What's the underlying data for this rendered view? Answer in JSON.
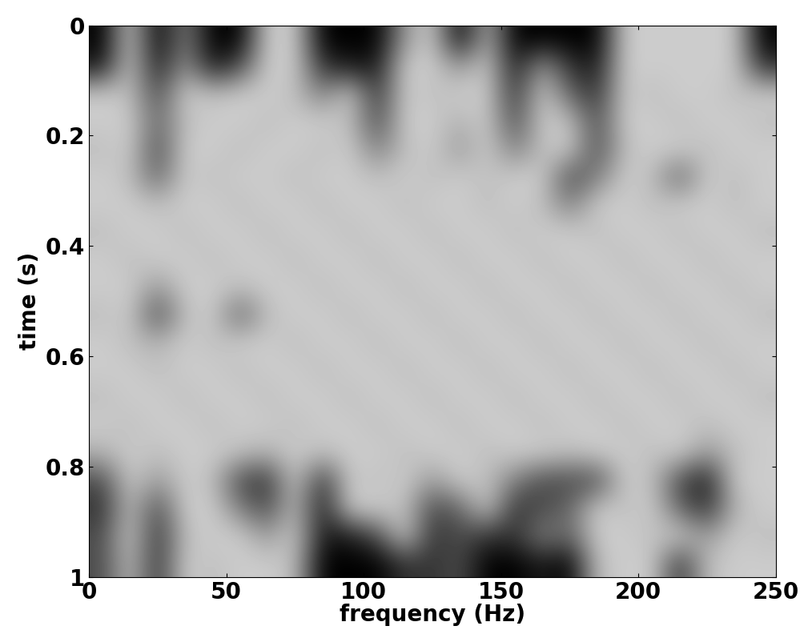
{
  "chart_data": {
    "type": "heatmap",
    "x_label": "frequency (Hz)",
    "y_label": "time (s)",
    "xlim": [
      0,
      250
    ],
    "xticks": [
      0,
      50,
      100,
      150,
      200,
      250
    ],
    "ylim": [
      0,
      1
    ],
    "yticks": [
      0,
      0.2,
      0.4,
      0.6,
      0.8,
      1
    ],
    "color": "gray",
    "value_range": [
      0,
      1
    ],
    "cells": [
      [
        0.0,
        0.8,
        0.0,
        0.5,
        0.0,
        0.0,
        0.8,
        0.8,
        0.0,
        0.0,
        0.0,
        0.6,
        0.8,
        0.0,
        0.7,
        0.0,
        0.0,
        0.0,
        0.0,
        0.8,
        0.8,
        0.8,
        0.8,
        0.8,
        0.0
      ],
      [
        0.1,
        0.8,
        0.1,
        0.6,
        0.1,
        0.3,
        0.8,
        0.8,
        0.2,
        0.1,
        0.1,
        0.8,
        0.8,
        0.6,
        0.8,
        0.1,
        0.6,
        0.2,
        0.1,
        0.8,
        0.8,
        0.8,
        0.8,
        0.8,
        0.2
      ],
      [
        0.8,
        0.75,
        0.3,
        0.8,
        0.75,
        0.8,
        0.8,
        0.75,
        0.5,
        0.8,
        0.2,
        0.8,
        0.75,
        0.8,
        0.8,
        0.2,
        0.8,
        0.4,
        0.2,
        0.8,
        0.75,
        0.8,
        0.8,
        0.75,
        0.8
      ],
      [
        0.8,
        0.8,
        0.4,
        0.75,
        0.8,
        0.8,
        0.75,
        0.8,
        0.8,
        0.75,
        0.3,
        0.8,
        0.8,
        0.7,
        0.8,
        0.3,
        0.8,
        0.75,
        0.3,
        0.8,
        0.8,
        0.75,
        0.8,
        0.8,
        0.75
      ],
      [
        0.75,
        0.8,
        0.3,
        0.8,
        0.8,
        0.75,
        0.8,
        0.8,
        0.75,
        0.8,
        0.5,
        0.75,
        0.8,
        0.6,
        0.8,
        0.5,
        0.75,
        0.8,
        0.3,
        0.75,
        0.8,
        0.8,
        0.75,
        0.8,
        0.8
      ],
      [
        0.8,
        0.75,
        0.4,
        0.8,
        0.75,
        0.8,
        0.8,
        0.75,
        0.8,
        0.8,
        0.75,
        0.8,
        0.75,
        0.8,
        0.75,
        0.8,
        0.8,
        0.3,
        0.5,
        0.8,
        0.75,
        0.4,
        0.8,
        0.75,
        0.8
      ],
      [
        0.8,
        0.8,
        0.75,
        0.8,
        0.8,
        0.75,
        0.8,
        0.8,
        0.75,
        0.8,
        0.8,
        0.75,
        0.8,
        0.8,
        0.75,
        0.8,
        0.75,
        0.5,
        0.8,
        0.8,
        0.75,
        0.8,
        0.8,
        0.75,
        0.8
      ],
      [
        0.75,
        0.8,
        0.8,
        0.75,
        0.8,
        0.8,
        0.75,
        0.8,
        0.8,
        0.75,
        0.8,
        0.8,
        0.75,
        0.8,
        0.8,
        0.75,
        0.8,
        0.8,
        0.75,
        0.8,
        0.8,
        0.75,
        0.8,
        0.8,
        0.75
      ],
      [
        0.8,
        0.75,
        0.8,
        0.8,
        0.75,
        0.8,
        0.8,
        0.75,
        0.8,
        0.8,
        0.75,
        0.8,
        0.8,
        0.75,
        0.8,
        0.8,
        0.75,
        0.8,
        0.8,
        0.75,
        0.8,
        0.8,
        0.75,
        0.8,
        0.8
      ],
      [
        0.8,
        0.8,
        0.6,
        0.8,
        0.8,
        0.75,
        0.8,
        0.8,
        0.75,
        0.8,
        0.8,
        0.75,
        0.8,
        0.8,
        0.75,
        0.8,
        0.8,
        0.75,
        0.8,
        0.8,
        0.75,
        0.8,
        0.8,
        0.75,
        0.8
      ],
      [
        0.75,
        0.8,
        0.3,
        0.75,
        0.8,
        0.4,
        0.75,
        0.8,
        0.8,
        0.75,
        0.8,
        0.8,
        0.75,
        0.8,
        0.8,
        0.75,
        0.8,
        0.8,
        0.75,
        0.8,
        0.8,
        0.75,
        0.8,
        0.8,
        0.75
      ],
      [
        0.8,
        0.75,
        0.7,
        0.8,
        0.75,
        0.8,
        0.8,
        0.75,
        0.8,
        0.8,
        0.75,
        0.8,
        0.8,
        0.75,
        0.8,
        0.8,
        0.75,
        0.8,
        0.8,
        0.75,
        0.8,
        0.8,
        0.75,
        0.8,
        0.8
      ],
      [
        0.8,
        0.8,
        0.75,
        0.8,
        0.8,
        0.75,
        0.8,
        0.8,
        0.75,
        0.8,
        0.8,
        0.75,
        0.8,
        0.8,
        0.75,
        0.8,
        0.8,
        0.75,
        0.8,
        0.8,
        0.75,
        0.8,
        0.8,
        0.75,
        0.8
      ],
      [
        0.75,
        0.8,
        0.8,
        0.75,
        0.8,
        0.8,
        0.75,
        0.8,
        0.8,
        0.75,
        0.8,
        0.8,
        0.75,
        0.8,
        0.8,
        0.75,
        0.8,
        0.8,
        0.75,
        0.8,
        0.8,
        0.75,
        0.8,
        0.8,
        0.75
      ],
      [
        0.8,
        0.75,
        0.8,
        0.8,
        0.75,
        0.8,
        0.8,
        0.75,
        0.8,
        0.8,
        0.75,
        0.8,
        0.8,
        0.75,
        0.8,
        0.8,
        0.75,
        0.8,
        0.8,
        0.75,
        0.8,
        0.8,
        0.75,
        0.8,
        0.8
      ],
      [
        0.7,
        0.8,
        0.75,
        0.8,
        0.8,
        0.75,
        0.7,
        0.8,
        0.75,
        0.8,
        0.8,
        0.75,
        0.8,
        0.8,
        0.75,
        0.8,
        0.8,
        0.75,
        0.8,
        0.8,
        0.75,
        0.8,
        0.6,
        0.75,
        0.8
      ],
      [
        0.3,
        0.8,
        0.6,
        0.8,
        0.75,
        0.3,
        0.2,
        0.8,
        0.2,
        0.8,
        0.75,
        0.8,
        0.6,
        0.8,
        0.75,
        0.5,
        0.3,
        0.3,
        0.3,
        0.8,
        0.75,
        0.3,
        0.1,
        0.8,
        0.8
      ],
      [
        0.2,
        0.75,
        0.3,
        0.8,
        0.8,
        0.5,
        0.3,
        0.75,
        0.1,
        0.8,
        0.8,
        0.75,
        0.3,
        0.4,
        0.8,
        0.2,
        0.3,
        0.4,
        0.8,
        0.75,
        0.8,
        0.4,
        0.2,
        0.7,
        0.8
      ],
      [
        0.3,
        0.8,
        0.2,
        0.75,
        0.8,
        0.8,
        0.6,
        0.8,
        0.1,
        0.1,
        0.3,
        0.8,
        0.2,
        0.3,
        0.2,
        0.2,
        0.5,
        0.4,
        0.8,
        0.8,
        0.75,
        0.8,
        0.6,
        0.8,
        0.75
      ],
      [
        0.3,
        0.75,
        0.2,
        0.8,
        0.75,
        0.8,
        0.8,
        0.75,
        0.0,
        0.0,
        0.0,
        0.2,
        0.2,
        0.3,
        0.0,
        0.0,
        0.1,
        0.0,
        0.75,
        0.8,
        0.8,
        0.2,
        0.75,
        0.8,
        0.8
      ]
    ]
  }
}
